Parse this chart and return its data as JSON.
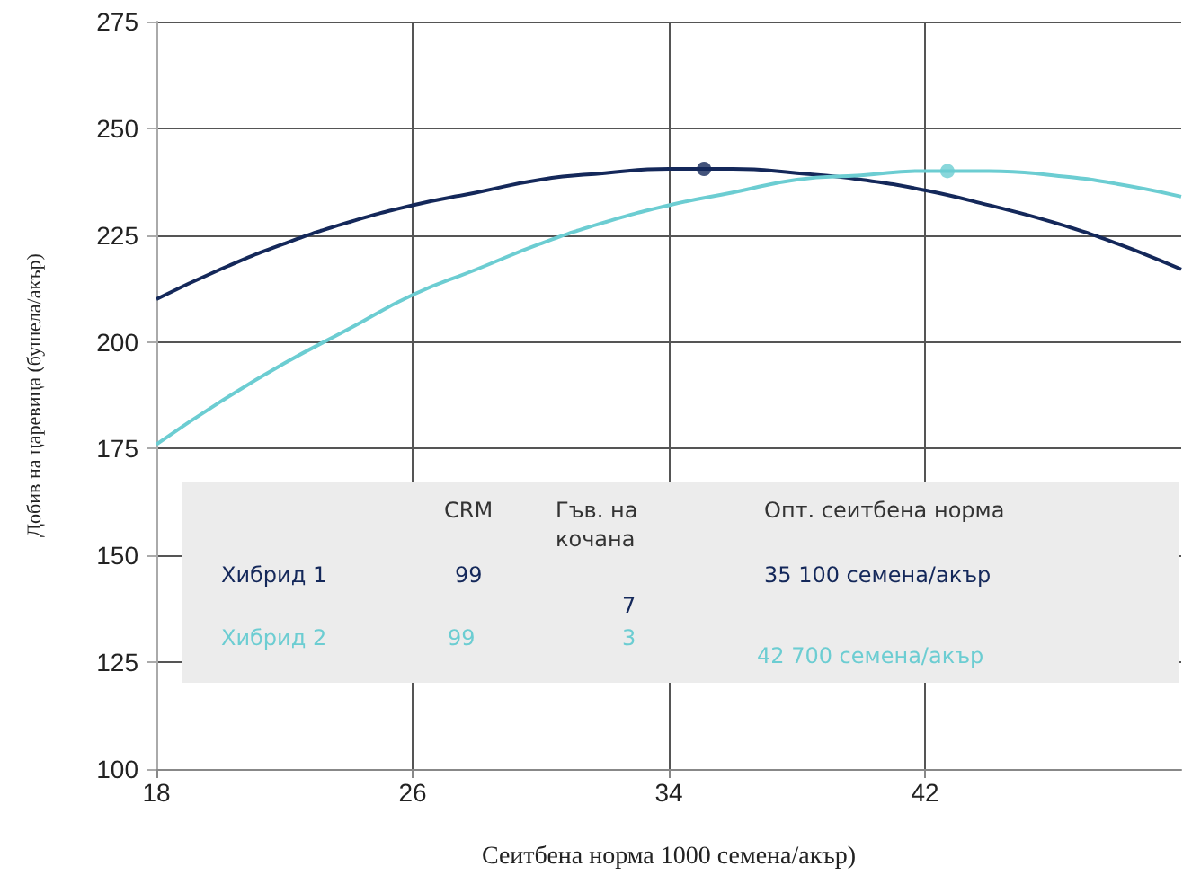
{
  "chart_data": {
    "type": "line",
    "xlabel": "Сеитбена норма 1000 семена/акър)",
    "ylabel": "Добив на царевица (бушела/акър)",
    "x": [
      18,
      20,
      22,
      24,
      26,
      28,
      30,
      32,
      34,
      36,
      38,
      40,
      42,
      44,
      46,
      48,
      50
    ],
    "series": [
      {
        "name": "Хибрид 1",
        "color": "#14285a",
        "values": [
          210,
          217,
          223,
          228,
          232,
          235,
          238,
          239.5,
          240.5,
          240.5,
          239.5,
          238,
          235.5,
          232,
          228,
          223,
          217
        ]
      },
      {
        "name": "Хибрид 2",
        "color": "#6ccdd2",
        "values": [
          176,
          186,
          195,
          203,
          211,
          217,
          223,
          228,
          232,
          235,
          238,
          239,
          240,
          240,
          239,
          237,
          234
        ]
      },
      {
        "type": "scatter",
        "color": "#14285a",
        "marker": "circle",
        "x": [
          35.1
        ],
        "values": [
          240.5
        ]
      },
      {
        "type": "scatter",
        "color": "#6ccdd2",
        "marker": "circle",
        "x": [
          42.7
        ],
        "values": [
          240
        ]
      }
    ],
    "marker": "none",
    "xlim": [
      18,
      50
    ],
    "xticks": [
      18,
      26,
      34,
      42
    ],
    "ylim": [
      100,
      275
    ],
    "yticks": [
      100,
      125,
      150,
      175,
      200,
      225,
      250,
      275
    ],
    "grid": true,
    "legend": false,
    "annotations": [
      "CRM",
      "Гъв. на\nкочана",
      "Опт. сеитбена норма",
      "99",
      "7",
      "35 100 семена/акър",
      "99",
      "3",
      "42 700 семена/акър"
    ]
  }
}
